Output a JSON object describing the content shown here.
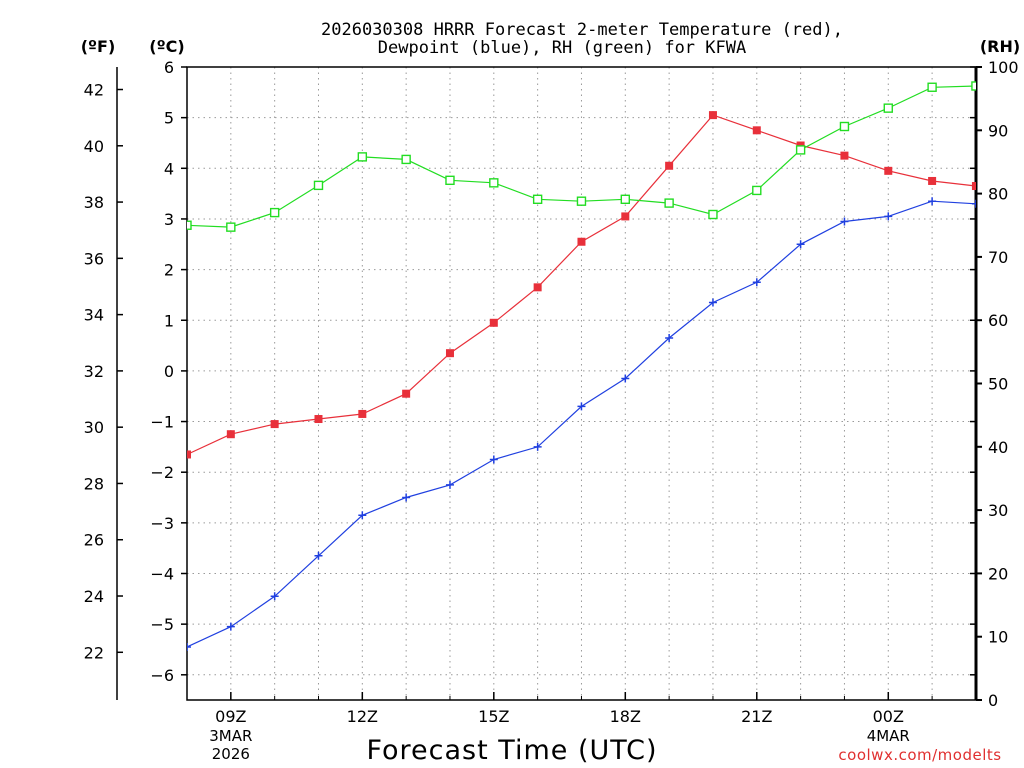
{
  "chart_data": {
    "type": "line",
    "title_line1": "2026030308 HRRR Forecast 2-meter Temperature (red),",
    "title_line2": "Dewpoint (blue), RH (green) for KFWA",
    "xlabel": "Forecast Time (UTC)",
    "credit": "coolwx.com/modelts",
    "units": {
      "fahrenheit": "(ºF)",
      "celsius": "(ºC)",
      "rh": "(RH)"
    },
    "hours": [
      8,
      9,
      10,
      11,
      12,
      13,
      14,
      15,
      16,
      17,
      18,
      19,
      20,
      21,
      22,
      23,
      24,
      25,
      26
    ],
    "x_ticks": [
      {
        "hour": 9,
        "label": "09Z",
        "date1": "3MAR",
        "date2": "2026"
      },
      {
        "hour": 12,
        "label": "12Z"
      },
      {
        "hour": 15,
        "label": "15Z"
      },
      {
        "hour": 18,
        "label": "18Z"
      },
      {
        "hour": 21,
        "label": "21Z"
      },
      {
        "hour": 24,
        "label": "00Z",
        "date1": "4MAR"
      }
    ],
    "xlim": [
      8,
      26
    ],
    "celsius_axis": {
      "range": [
        -6.5,
        6
      ],
      "ticks": [
        "6",
        "5",
        "4",
        "3",
        "2",
        "1",
        "0",
        "−1",
        "−2",
        "−3",
        "−4",
        "−5",
        "−6"
      ]
    },
    "fahrenheit_axis": {
      "ticks": [
        "42",
        "40",
        "38",
        "36",
        "34",
        "32",
        "30",
        "28",
        "26",
        "24",
        "22"
      ]
    },
    "rh_axis": {
      "range": [
        0,
        100
      ],
      "ticks": [
        "0",
        "10",
        "20",
        "30",
        "40",
        "50",
        "60",
        "70",
        "80",
        "90",
        "100"
      ]
    },
    "series": [
      {
        "name": "2-meter Temperature",
        "unit": "C",
        "color": "#e8303a",
        "marker": "filled-square",
        "values": [
          -1.65,
          -1.25,
          -1.05,
          -0.95,
          -0.85,
          -0.45,
          0.35,
          0.95,
          1.65,
          2.55,
          3.05,
          4.05,
          5.05,
          4.75,
          4.45,
          4.25,
          3.95,
          3.75,
          3.65
        ]
      },
      {
        "name": "Dewpoint",
        "unit": "C",
        "color": "#2040e0",
        "marker": "plus",
        "values": [
          -5.45,
          -5.05,
          -4.45,
          -3.65,
          -2.85,
          -2.5,
          -2.25,
          -1.75,
          -1.5,
          -0.7,
          -0.15,
          0.65,
          1.35,
          1.75,
          2.5,
          2.95,
          3.05,
          3.35,
          3.3
        ]
      },
      {
        "name": "Relative Humidity",
        "unit": "%",
        "color": "#22dd22",
        "marker": "open-square",
        "values": [
          75.0,
          74.7,
          77.0,
          81.3,
          85.8,
          85.4,
          82.1,
          81.7,
          79.1,
          78.8,
          79.1,
          78.5,
          76.7,
          80.5,
          86.9,
          90.6,
          93.5,
          96.8,
          97.0
        ]
      }
    ]
  }
}
